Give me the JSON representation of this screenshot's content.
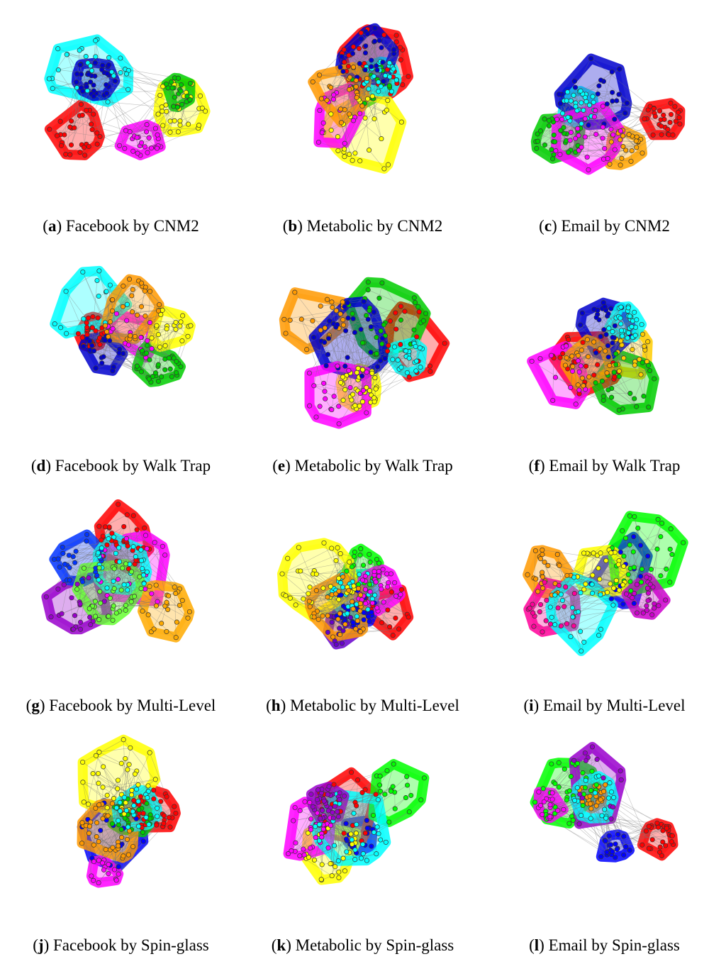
{
  "panels": [
    {
      "letter": "a",
      "caption": "Facebook by CNM2",
      "palette": [
        "#ff0000",
        "#ffff00",
        "#00cc00",
        "#00ffff",
        "#0000cc",
        "#ff00ff"
      ]
    },
    {
      "letter": "b",
      "caption": "Metabolic by CNM2",
      "palette": [
        "#00cc00",
        "#ff0000",
        "#ffff00",
        "#00ffff",
        "#0000cc",
        "#ff00ff",
        "#ff9900"
      ]
    },
    {
      "letter": "c",
      "caption": "Email by CNM2",
      "palette": [
        "#ffa500",
        "#00cc00",
        "#ff0000",
        "#00ffff",
        "#0000cc",
        "#ff00ff"
      ]
    },
    {
      "letter": "d",
      "caption": "Facebook by Walk Trap",
      "palette": [
        "#ff0000",
        "#ff00ff",
        "#00cc00",
        "#0000cc",
        "#00ffff",
        "#ffff00",
        "#ff9900"
      ]
    },
    {
      "letter": "e",
      "caption": "Metabolic by Walk Trap",
      "palette": [
        "#ff0000",
        "#ff9900",
        "#ffff00",
        "#00cc00",
        "#0000cc",
        "#ff00ff",
        "#00ffff"
      ]
    },
    {
      "letter": "f",
      "caption": "Email by Walk Trap",
      "palette": [
        "#ff0000",
        "#ffcc00",
        "#00cc00",
        "#0000cc",
        "#ff00ff",
        "#00ffff",
        "#ff9900"
      ]
    },
    {
      "letter": "g",
      "caption": "Facebook by Multi-Level",
      "palette": [
        "#ff0000",
        "#ff00ff",
        "#9900cc",
        "#0033ff",
        "#00ffff",
        "#66ff33",
        "#ffaa00"
      ]
    },
    {
      "letter": "h",
      "caption": "Metabolic by Multi-Level",
      "palette": [
        "#ff0000",
        "#6600cc",
        "#0000ff",
        "#00ffff",
        "#00ff00",
        "#ffff00",
        "#ff00ff",
        "#ff9900"
      ]
    },
    {
      "letter": "i",
      "caption": "Email by Multi-Level",
      "palette": [
        "#ff9900",
        "#0000ff",
        "#00ff00",
        "#ff0099",
        "#ffff00",
        "#00ffff",
        "#cc00cc"
      ]
    },
    {
      "letter": "j",
      "caption": "Facebook by Spin-glass",
      "palette": [
        "#ff0000",
        "#0000ff",
        "#00cc00",
        "#ff00ff",
        "#ffff00",
        "#ff9900",
        "#00ffff"
      ]
    },
    {
      "letter": "k",
      "caption": "Metabolic by Spin-glass",
      "palette": [
        "#0000ff",
        "#ff0000",
        "#ffff00",
        "#00ff00",
        "#ff00ff",
        "#00ffff",
        "#9900cc"
      ]
    },
    {
      "letter": "l",
      "caption": "Email by Spin-glass",
      "palette": [
        "#ff9900",
        "#00ff00",
        "#9900cc",
        "#ff00ff",
        "#0000ff",
        "#00ffff",
        "#ff0000"
      ]
    }
  ]
}
